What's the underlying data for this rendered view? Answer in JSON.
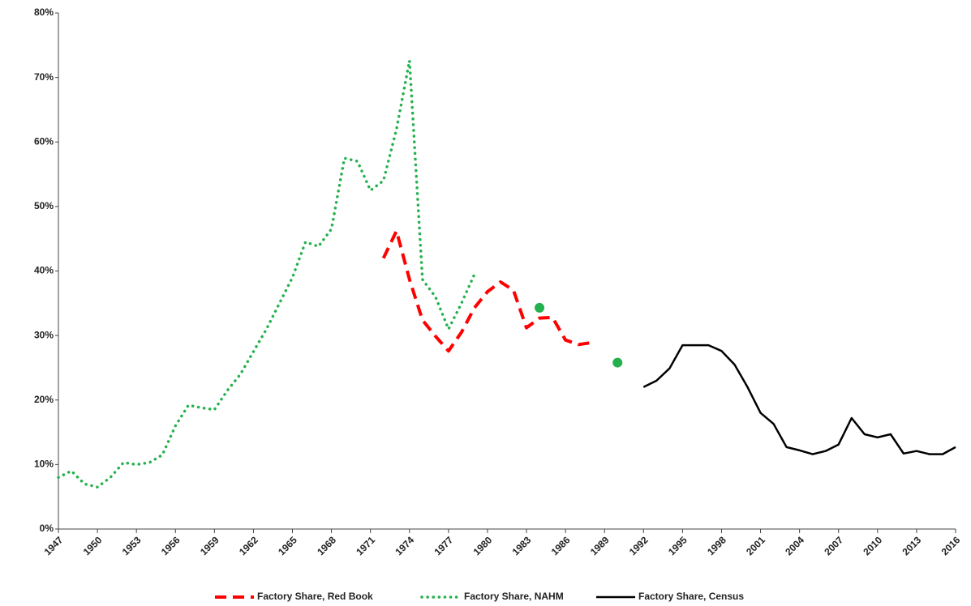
{
  "chart_data": {
    "type": "line",
    "x": [
      1947,
      1948,
      1949,
      1950,
      1951,
      1952,
      1953,
      1954,
      1955,
      1956,
      1957,
      1958,
      1959,
      1960,
      1961,
      1962,
      1963,
      1964,
      1965,
      1966,
      1967,
      1968,
      1969,
      1970,
      1971,
      1972,
      1973,
      1974,
      1975,
      1976,
      1977,
      1978,
      1979,
      1980,
      1981,
      1982,
      1983,
      1984,
      1985,
      1986,
      1987,
      1988,
      1989,
      1990,
      1991,
      1992,
      1993,
      1994,
      1995,
      1996,
      1997,
      1998,
      1999,
      2000,
      2001,
      2002,
      2003,
      2004,
      2005,
      2006,
      2007,
      2008,
      2009,
      2010,
      2011,
      2012,
      2013,
      2014,
      2015,
      2016
    ],
    "series": [
      {
        "name": "Factory Share, Red Book",
        "color": "#ff0000",
        "style": "dashed",
        "values": [
          null,
          null,
          null,
          null,
          null,
          null,
          null,
          null,
          null,
          null,
          null,
          null,
          null,
          null,
          null,
          null,
          null,
          null,
          null,
          null,
          null,
          null,
          null,
          null,
          null,
          42,
          46.2,
          38.7,
          32.4,
          29.9,
          27.6,
          30.5,
          34.3,
          36.8,
          38.3,
          37,
          31.2,
          32.7,
          32.8,
          29.3,
          28.6,
          28.9,
          null,
          null,
          null,
          null,
          null,
          null,
          null,
          null,
          null,
          null,
          null,
          null,
          null,
          null,
          null,
          null,
          null,
          null,
          null,
          null,
          null,
          null,
          null,
          null,
          null,
          null,
          null,
          null
        ]
      },
      {
        "name": "Factory Share, NAHM",
        "color": "#22b14c",
        "style": "dotted",
        "values": [
          8,
          9,
          7,
          6.5,
          8,
          10.3,
          10,
          10.3,
          11.5,
          16,
          19.2,
          18.8,
          18.5,
          21.5,
          24,
          27.5,
          31,
          35,
          39,
          44.5,
          43.8,
          46.5,
          57.5,
          57,
          52.5,
          54,
          62,
          72.6,
          38.7,
          36,
          31,
          35,
          39.5,
          null,
          null,
          null,
          null,
          34.3,
          null,
          null,
          null,
          null,
          null,
          25.8,
          null,
          null,
          null,
          null,
          null,
          null,
          null,
          null,
          null,
          null,
          null,
          null,
          null,
          null,
          null,
          null,
          null,
          null,
          null,
          null,
          null,
          null,
          null,
          null,
          null,
          null
        ]
      },
      {
        "name": "Factory Share, Census",
        "color": "#000000",
        "style": "solid",
        "values": [
          null,
          null,
          null,
          null,
          null,
          null,
          null,
          null,
          null,
          null,
          null,
          null,
          null,
          null,
          null,
          null,
          null,
          null,
          null,
          null,
          null,
          null,
          null,
          null,
          null,
          null,
          null,
          null,
          null,
          null,
          null,
          null,
          null,
          null,
          null,
          null,
          null,
          null,
          null,
          null,
          null,
          null,
          null,
          null,
          null,
          22,
          23,
          24.9,
          28.5,
          28.5,
          28.5,
          27.6,
          25.5,
          22,
          18,
          16.3,
          12.7,
          12.2,
          11.6,
          12.1,
          13.1,
          17.2,
          14.7,
          14.2,
          14.7,
          11.7,
          12.1,
          11.6,
          11.6,
          12.7
        ]
      }
    ],
    "xlim": [
      1947,
      2016
    ],
    "xticks": [
      1947,
      1950,
      1953,
      1956,
      1959,
      1962,
      1965,
      1968,
      1971,
      1974,
      1977,
      1980,
      1983,
      1986,
      1989,
      1992,
      1995,
      1998,
      2001,
      2004,
      2007,
      2010,
      2013,
      2016
    ],
    "ylim": [
      0,
      80
    ],
    "yticks": [
      {
        "value": 0,
        "label": "0%"
      },
      {
        "value": 10,
        "label": "10%"
      },
      {
        "value": 20,
        "label": "20%"
      },
      {
        "value": 30,
        "label": "30%"
      },
      {
        "value": 40,
        "label": "40%"
      },
      {
        "value": 50,
        "label": "50%"
      },
      {
        "value": 60,
        "label": "60%"
      },
      {
        "value": 70,
        "label": "70%"
      },
      {
        "value": 80,
        "label": "80%"
      }
    ],
    "grid": false,
    "legend": "bottom"
  }
}
